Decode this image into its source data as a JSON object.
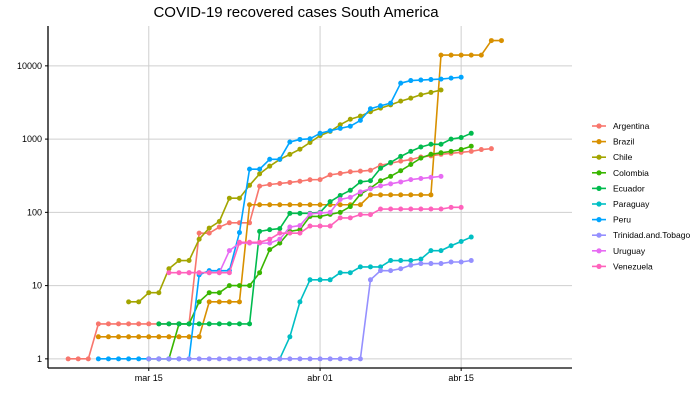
{
  "chart_data": {
    "type": "line",
    "title": "COVID-19 recovered cases South America",
    "xlabel": "",
    "ylabel": "",
    "y_scale": "log10",
    "ylim": [
      0.75,
      35000
    ],
    "xlim": [
      "2020-03-05",
      "2020-04-26"
    ],
    "y_ticks": [
      1,
      10,
      100,
      1000,
      10000
    ],
    "y_tick_labels": [
      "1",
      "10",
      "100",
      "1000",
      "10000"
    ],
    "x_ticks": [
      "2020-03-15",
      "2020-04-01",
      "2020-04-15"
    ],
    "x_tick_labels": [
      "mar 15",
      "abr 01",
      "abr 15"
    ],
    "grid": true,
    "legend_position": "right",
    "x": [
      "2020-03-07",
      "2020-03-08",
      "2020-03-09",
      "2020-03-10",
      "2020-03-11",
      "2020-03-12",
      "2020-03-13",
      "2020-03-14",
      "2020-03-15",
      "2020-03-16",
      "2020-03-17",
      "2020-03-18",
      "2020-03-19",
      "2020-03-20",
      "2020-03-21",
      "2020-03-22",
      "2020-03-23",
      "2020-03-24",
      "2020-03-25",
      "2020-03-26",
      "2020-03-27",
      "2020-03-28",
      "2020-03-29",
      "2020-03-30",
      "2020-03-31",
      "2020-04-01",
      "2020-04-02",
      "2020-04-03",
      "2020-04-04",
      "2020-04-05",
      "2020-04-06",
      "2020-04-07",
      "2020-04-08",
      "2020-04-09",
      "2020-04-10",
      "2020-04-11",
      "2020-04-12",
      "2020-04-13",
      "2020-04-14",
      "2020-04-15",
      "2020-04-16",
      "2020-04-17",
      "2020-04-18",
      "2020-04-19",
      "2020-04-20",
      "2020-04-21",
      "2020-04-22",
      "2020-04-23",
      "2020-04-24"
    ],
    "series": [
      {
        "name": "Argentina",
        "color": "#F8766D",
        "values": [
          1,
          1,
          1,
          3,
          3,
          3,
          3,
          3,
          3,
          3,
          3,
          3,
          3,
          52,
          52,
          63,
          72,
          72,
          72,
          228,
          240,
          248,
          256,
          266,
          279,
          280,
          325,
          340,
          358,
          365,
          375,
          440,
          468,
          500,
          525,
          570,
          590,
          620,
          640,
          660,
          680,
          720,
          740,
          null,
          null,
          null,
          null,
          null,
          null
        ]
      },
      {
        "name": "Brazil",
        "color": "#D89000",
        "values": [
          null,
          null,
          null,
          2,
          2,
          2,
          2,
          2,
          2,
          2,
          2,
          2,
          2,
          2,
          6,
          6,
          6,
          6,
          127,
          127,
          127,
          127,
          127,
          127,
          127,
          127,
          127,
          127,
          127,
          127,
          173,
          173,
          173,
          173,
          173,
          173,
          173,
          14026,
          14026,
          14026,
          14026,
          14026,
          22130,
          22130,
          null,
          null,
          null,
          null,
          null
        ]
      },
      {
        "name": "Chile",
        "color": "#A3A500",
        "values": [
          null,
          null,
          null,
          null,
          null,
          null,
          6,
          6,
          8,
          8,
          17,
          22,
          22,
          43,
          61,
          75,
          156,
          156,
          234,
          335,
          427,
          528,
          619,
          728,
          898,
          1115,
          1274,
          1571,
          1864,
          2059,
          2367,
          2646,
          2937,
          3299,
          3621,
          4035,
          4338,
          4676,
          null,
          null,
          null,
          null,
          null,
          null,
          null,
          null,
          null,
          null,
          null
        ]
      },
      {
        "name": "Colombia",
        "color": "#39B600",
        "values": [
          null,
          null,
          null,
          null,
          null,
          null,
          null,
          null,
          1,
          1,
          1,
          3,
          3,
          6,
          8,
          8,
          10,
          10,
          10,
          15,
          31,
          38,
          55,
          58,
          88,
          88,
          94,
          100,
          120,
          177,
          214,
          270,
          310,
          370,
          450,
          550,
          620,
          650,
          680,
          720,
          800,
          null,
          null,
          null,
          null,
          null,
          null,
          null,
          null
        ]
      },
      {
        "name": "Ecuador",
        "color": "#00BB4E",
        "values": [
          null,
          null,
          null,
          null,
          null,
          null,
          null,
          null,
          null,
          3,
          3,
          3,
          3,
          3,
          3,
          3,
          3,
          3,
          3,
          55,
          58,
          60,
          97,
          97,
          97,
          100,
          140,
          170,
          200,
          260,
          270,
          400,
          480,
          580,
          680,
          780,
          850,
          850,
          1000,
          1050,
          1200,
          null,
          null,
          null,
          null,
          null,
          null,
          null,
          null
        ]
      },
      {
        "name": "Paraguay",
        "color": "#00BFC4",
        "values": [
          null,
          null,
          null,
          null,
          null,
          null,
          null,
          null,
          null,
          null,
          null,
          null,
          null,
          null,
          null,
          null,
          null,
          null,
          null,
          null,
          1,
          1,
          2,
          6,
          12,
          12,
          12,
          15,
          15,
          18,
          18,
          18,
          22,
          22,
          22,
          23,
          30,
          30,
          35,
          40,
          46,
          null,
          null,
          null,
          null,
          null,
          null,
          null,
          null
        ]
      },
      {
        "name": "Peru",
        "color": "#00A5FF",
        "values": [
          null,
          null,
          null,
          1,
          1,
          1,
          1,
          1,
          1,
          1,
          1,
          1,
          1,
          14,
          16,
          16,
          16,
          53,
          389,
          389,
          530,
          530,
          914,
          989,
          1010,
          1200,
          1300,
          1400,
          1500,
          1800,
          2600,
          2850,
          3100,
          5800,
          6300,
          6400,
          6500,
          6600,
          6800,
          7000,
          null,
          null,
          null,
          null,
          null,
          null,
          null,
          null,
          null
        ]
      },
      {
        "name": "Trinidad.and.Tobago",
        "color": "#9590FF",
        "values": [
          null,
          null,
          null,
          null,
          null,
          null,
          null,
          null,
          1,
          1,
          1,
          1,
          1,
          1,
          1,
          1,
          1,
          1,
          1,
          1,
          1,
          1,
          1,
          1,
          1,
          1,
          1,
          1,
          1,
          1,
          12,
          16,
          16,
          17,
          19,
          20,
          20,
          20,
          21,
          21,
          22,
          null,
          null,
          null,
          null,
          null,
          null,
          null,
          null
        ]
      },
      {
        "name": "Uruguay",
        "color": "#E76BF3",
        "values": [
          null,
          null,
          null,
          null,
          null,
          null,
          null,
          null,
          null,
          null,
          null,
          null,
          15,
          15,
          15,
          15,
          30,
          38,
          38,
          38,
          38,
          43,
          63,
          66,
          95,
          98,
          100,
          150,
          160,
          190,
          210,
          230,
          245,
          260,
          280,
          290,
          300,
          310,
          null,
          null,
          null,
          null,
          null,
          null,
          null,
          null,
          null,
          null,
          null
        ]
      },
      {
        "name": "Venezuela",
        "color": "#FF62BC",
        "values": [
          null,
          null,
          null,
          null,
          null,
          null,
          null,
          null,
          null,
          null,
          15,
          15,
          15,
          15,
          15,
          15,
          15,
          39,
          39,
          39,
          43,
          52,
          52,
          52,
          65,
          65,
          65,
          84,
          84,
          93,
          93,
          111,
          111,
          111,
          111,
          111,
          111,
          111,
          117,
          117,
          null,
          null,
          null,
          null,
          null,
          null,
          null,
          null,
          null
        ]
      }
    ]
  }
}
